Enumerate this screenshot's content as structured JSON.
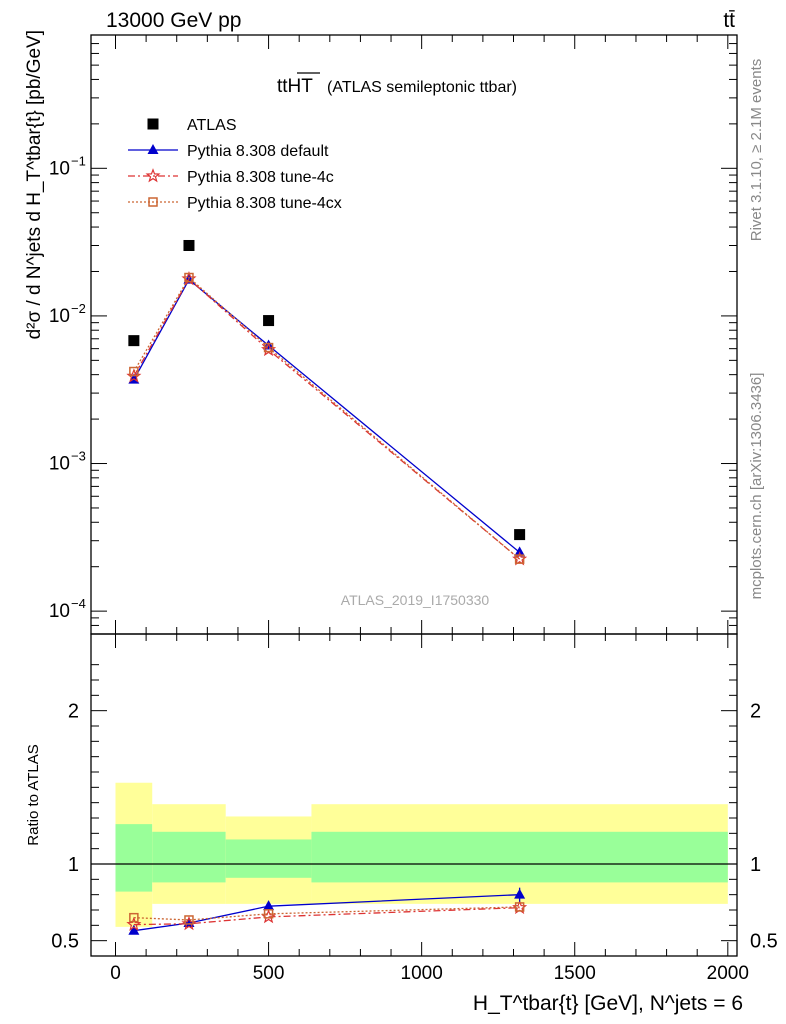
{
  "header": {
    "left": "13000 GeV pp",
    "right": "tt̄"
  },
  "title": {
    "main": "ttHT",
    "sub": "(ATLAS semileptonic ttbar)"
  },
  "side_text": {
    "rivet": "Rivet 3.1.10, ≥ 2.1M events",
    "mcplots": "mcplots.cern.ch [arXiv:1306.3436]"
  },
  "analysis_label": "ATLAS_2019_I1750330",
  "axes": {
    "ylabel_main": "d²σ / d N^jets d H_T^tbar{t} [pb/GeV]",
    "ylabel_ratio": "Ratio to ATLAS",
    "xlabel": "H_T^tbar{t} [GeV], N^jets = 6"
  },
  "legend": [
    {
      "label": "ATLAS",
      "color": "#000000",
      "marker": "square",
      "dash": ""
    },
    {
      "label": "Pythia 8.308 default",
      "color": "#0000cc",
      "marker": "triangle",
      "dash": ""
    },
    {
      "label": "Pythia 8.308 tune-4c",
      "color": "#dd3333",
      "marker": "star",
      "dash": "7,3,2,3"
    },
    {
      "label": "Pythia 8.308 tune-4cx",
      "color": "#cc6633",
      "marker": "opensquare",
      "dash": "2,2"
    }
  ],
  "chart_data": [
    {
      "type": "scatter",
      "panel": "main",
      "y_scale": "log",
      "xlim": [
        -80,
        2030
      ],
      "ylim": [
        7e-05,
        0.8
      ],
      "y_ticks": [
        "10^-4",
        "10^-3",
        "10^-2",
        "10^-1"
      ],
      "bins": [
        [
          0,
          120
        ],
        [
          120,
          360
        ],
        [
          360,
          640
        ],
        [
          640,
          2000
        ]
      ],
      "x": [
        60,
        240,
        500,
        1320
      ],
      "series": [
        {
          "name": "ATLAS",
          "values": [
            0.0068,
            0.03,
            0.0093,
            0.00033
          ]
        },
        {
          "name": "Pythia 8.308 default",
          "values": [
            0.0037,
            0.0176,
            0.0063,
            0.00025
          ]
        },
        {
          "name": "Pythia 8.308 tune-4c",
          "values": [
            0.0039,
            0.0178,
            0.0059,
            0.000225
          ]
        },
        {
          "name": "Pythia 8.308 tune-4cx",
          "values": [
            0.0042,
            0.0182,
            0.0061,
            0.000225
          ]
        }
      ]
    },
    {
      "type": "line",
      "panel": "ratio",
      "xlim": [
        -80,
        2030
      ],
      "ylim": [
        0.4,
        2.5
      ],
      "y_ticks": [
        0.5,
        1,
        2
      ],
      "x_ticks": [
        0,
        500,
        1000,
        1500,
        2000
      ],
      "x": [
        60,
        240,
        500,
        1320
      ],
      "bands": {
        "inner": [
          [
            0.82,
            1.26
          ],
          [
            0.88,
            1.21
          ],
          [
            0.91,
            1.16
          ],
          [
            0.88,
            1.21
          ]
        ],
        "outer": [
          [
            0.59,
            1.53
          ],
          [
            0.74,
            1.39
          ],
          [
            0.74,
            1.31
          ],
          [
            0.74,
            1.39
          ]
        ]
      },
      "series": [
        {
          "name": "Pythia 8.308 default",
          "values": [
            0.565,
            0.615,
            0.725,
            0.8
          ]
        },
        {
          "name": "Pythia 8.308 tune-4c",
          "values": [
            0.605,
            0.61,
            0.655,
            0.715
          ]
        },
        {
          "name": "Pythia 8.308 tune-4cx",
          "values": [
            0.65,
            0.635,
            0.675,
            0.72
          ]
        }
      ]
    }
  ]
}
